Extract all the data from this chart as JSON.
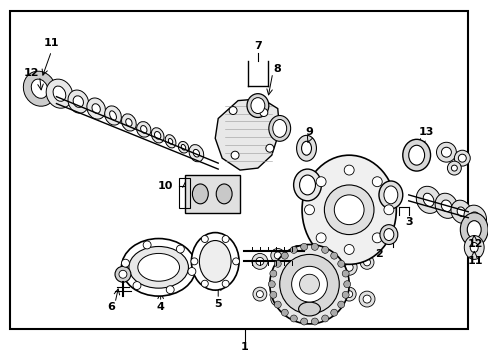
{
  "background_color": "#ffffff",
  "border_color": "#000000",
  "border_linewidth": 1.5,
  "fig_width": 4.9,
  "fig_height": 3.6,
  "dpi": 100,
  "label_fontsize": 8,
  "line_color": "#000000"
}
